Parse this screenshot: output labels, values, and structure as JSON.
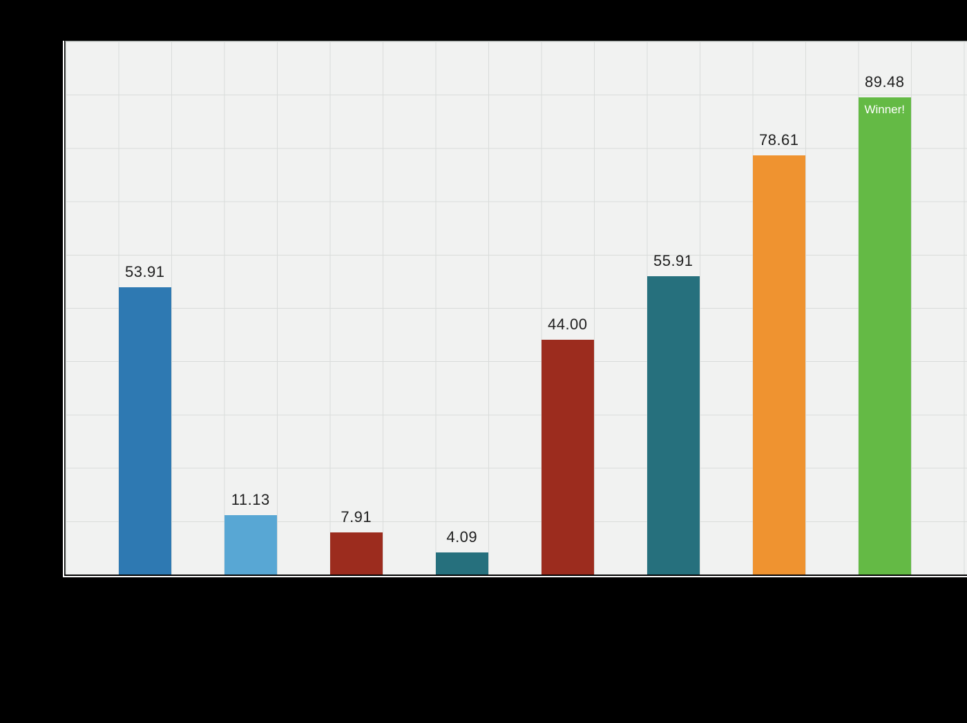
{
  "chart_data": {
    "type": "bar",
    "title": "",
    "values": [
      53.91,
      11.13,
      7.91,
      4.09,
      44.0,
      55.91,
      78.61,
      89.48
    ],
    "value_labels": [
      "53.91",
      "11.13",
      "7.91",
      "4.09",
      "44.00",
      "55.91",
      "78.61",
      "89.48"
    ],
    "bar_colors": [
      "#2e79b2",
      "#58a7d4",
      "#9c2c1e",
      "#26707d",
      "#9c2c1e",
      "#26707d",
      "#ef9330",
      "#64ba45"
    ],
    "ylim": [
      0,
      100
    ],
    "grid": true,
    "gridline_step": 10,
    "legend": "none",
    "annotation": {
      "text": "Winner!",
      "bar_index": 7,
      "color": "#ffffff"
    },
    "colors": {
      "page_background": "#000000",
      "plot_background": "#f1f2f1",
      "gridline": "#d9dcda",
      "axis_line": "#ffffff",
      "value_label_text": "#1d1d1d"
    }
  }
}
